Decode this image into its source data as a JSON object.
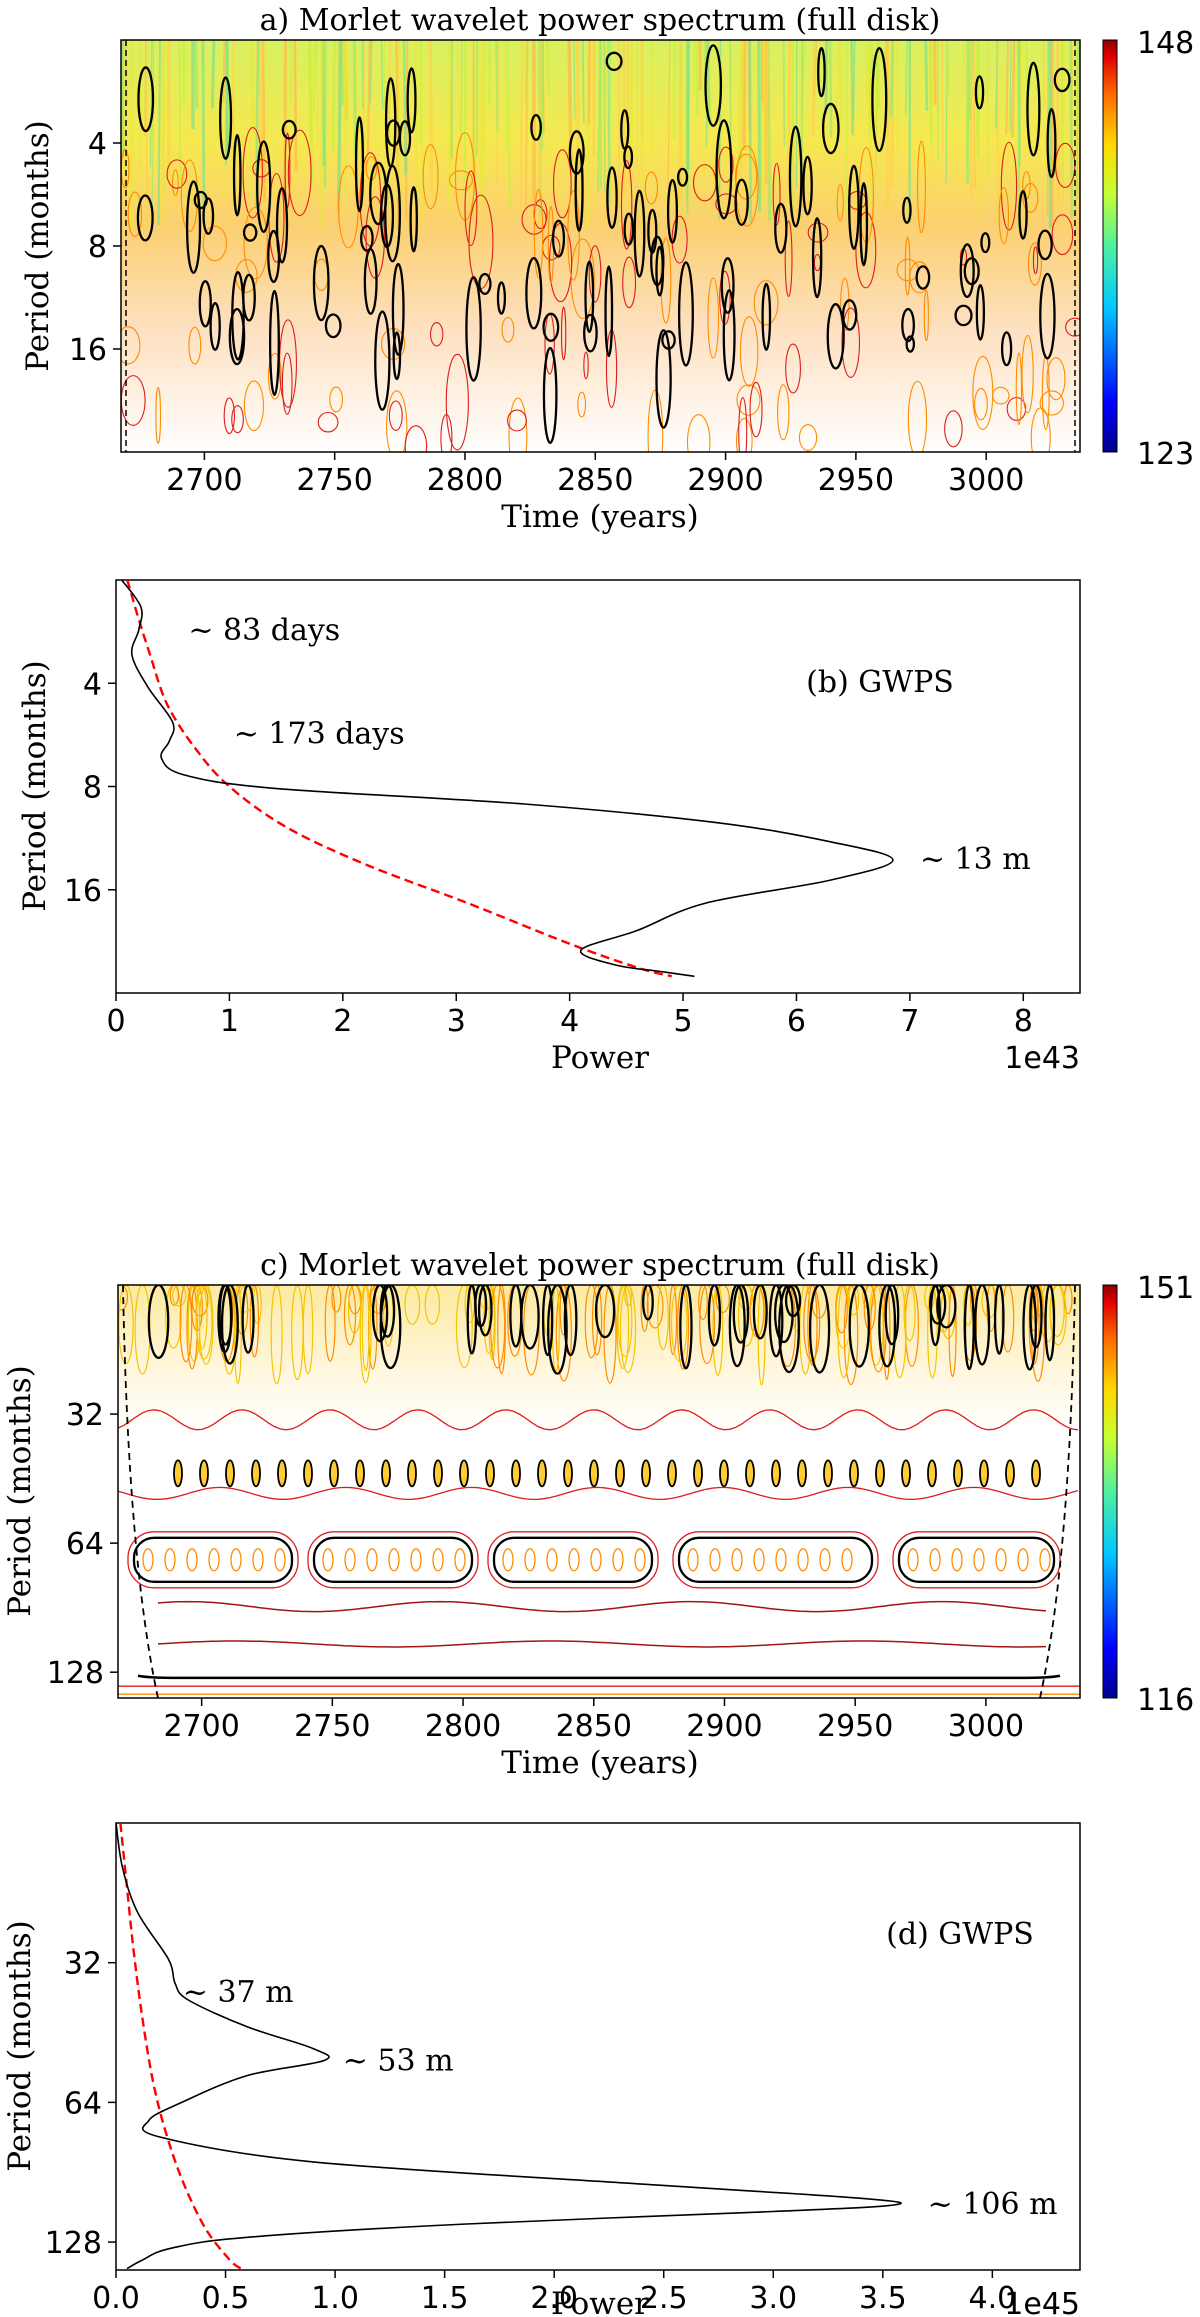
{
  "colors": {
    "contour_scale": [
      "#00008b",
      "#0000ff",
      "#00bfff",
      "#40e0d0",
      "#7fff7f",
      "#ffff00",
      "#ffa500",
      "#ff4500",
      "#ff0000",
      "#8b0000"
    ],
    "significance": "#000000",
    "coi": "#000000",
    "gwps_line": "#000000",
    "significance_line": "#ff0000",
    "contour_orange": "#ff8c00",
    "contour_red": "#dd1c1c",
    "contour_darkred": "#a01414"
  },
  "chart_data": [
    {
      "id": "a",
      "type": "heatmap",
      "title": "a) Morlet wavelet power spectrum (full disk)",
      "xlabel": "Time (years)",
      "ylabel": "Period (months)",
      "xlim": [
        2668,
        3036
      ],
      "ylim_log2": [
        1,
        5
      ],
      "xticks": [
        2700,
        2750,
        2800,
        2850,
        2900,
        2950,
        3000
      ],
      "yticks": [
        4,
        8,
        16
      ],
      "colorbar": {
        "min": 123,
        "max": 148,
        "min_label": "123",
        "max_label": "148"
      }
    },
    {
      "id": "b",
      "type": "line",
      "label": "(b) GWPS",
      "xlabel": "Power",
      "ylabel": "Period (months)",
      "xlim": [
        0,
        8.5
      ],
      "ylim_log2": [
        1,
        5
      ],
      "xticks": [
        0,
        1,
        2,
        3,
        4,
        5,
        6,
        7,
        8
      ],
      "yticks": [
        4,
        8,
        16
      ],
      "offset_label": "1e43",
      "annotations": [
        {
          "text": "~ 83 days",
          "x": 0.55,
          "period": 2.8
        },
        {
          "text": "~ 173 days",
          "x": 0.95,
          "period": 5.6
        },
        {
          "text": "~ 13 m",
          "x": 7.0,
          "period": 13.0
        }
      ],
      "series": [
        {
          "name": "GWPS",
          "points": [
            [
              0.05,
              2.0
            ],
            [
              0.22,
              2.4
            ],
            [
              0.2,
              2.8
            ],
            [
              0.14,
              3.3
            ],
            [
              0.28,
              4.1
            ],
            [
              0.5,
              5.2
            ],
            [
              0.47,
              5.9
            ],
            [
              0.4,
              6.6
            ],
            [
              0.6,
              7.4
            ],
            [
              1.4,
              8.1
            ],
            [
              3.6,
              9.0
            ],
            [
              5.3,
              10.2
            ],
            [
              6.3,
              11.6
            ],
            [
              6.85,
              13.1
            ],
            [
              6.3,
              15.0
            ],
            [
              5.2,
              17.5
            ],
            [
              4.6,
              21.0
            ],
            [
              4.1,
              24.0
            ],
            [
              4.4,
              26.5
            ],
            [
              4.8,
              27.7
            ],
            [
              5.1,
              28.6
            ]
          ]
        },
        {
          "name": "significance",
          "points": [
            [
              0.1,
              2.0
            ],
            [
              0.2,
              2.6
            ],
            [
              0.3,
              3.3
            ],
            [
              0.45,
              4.6
            ],
            [
              0.7,
              6.2
            ],
            [
              1.0,
              8.0
            ],
            [
              1.5,
              10.5
            ],
            [
              2.2,
              13.5
            ],
            [
              3.1,
              17.5
            ],
            [
              4.0,
              23.0
            ],
            [
              4.6,
              27.0
            ],
            [
              4.9,
              28.6
            ]
          ]
        }
      ]
    },
    {
      "id": "c",
      "type": "heatmap",
      "title": "c) Morlet wavelet power spectrum (full disk)",
      "xlabel": "Time (years)",
      "ylabel": "Period (months)",
      "xlim": [
        2668,
        3036
      ],
      "ylim_log2": [
        4,
        7.2
      ],
      "xticks": [
        2700,
        2750,
        2800,
        2850,
        2900,
        2950,
        3000
      ],
      "yticks": [
        32,
        64,
        128
      ],
      "colorbar": {
        "min": 116,
        "max": 151,
        "min_label": "116",
        "max_label": "151"
      }
    },
    {
      "id": "d",
      "type": "line",
      "label": "(d) GWPS",
      "xlabel": "Power",
      "ylabel": "Period (months)",
      "xlim": [
        0,
        4.4
      ],
      "ylim_log2": [
        4,
        7.2
      ],
      "xticks": [
        0.0,
        0.5,
        1.0,
        1.5,
        2.0,
        2.5,
        3.0,
        3.5,
        4.0
      ],
      "xtick_labels": [
        "0.0",
        "0.5",
        "1.0",
        "1.5",
        "2.0",
        "2.5",
        "3.0",
        "3.5",
        "4.0"
      ],
      "yticks": [
        32,
        64,
        128
      ],
      "offset_label": "1e45",
      "annotations": [
        {
          "text": "~ 37 m",
          "x": 0.25,
          "period": 37.0
        },
        {
          "text": "~ 53 m",
          "x": 0.98,
          "period": 52.0
        },
        {
          "text": "~ 106 m",
          "x": 3.65,
          "period": 106.0
        }
      ],
      "series": [
        {
          "name": "GWPS",
          "points": [
            [
              0.0,
              16.0
            ],
            [
              0.03,
              20.0
            ],
            [
              0.1,
              25.0
            ],
            [
              0.24,
              31.5
            ],
            [
              0.27,
              35.5
            ],
            [
              0.33,
              38.5
            ],
            [
              0.6,
              44.0
            ],
            [
              0.9,
              49.0
            ],
            [
              0.95,
              52.0
            ],
            [
              0.6,
              56.0
            ],
            [
              0.3,
              64.0
            ],
            [
              0.15,
              70.0
            ],
            [
              0.2,
              76.0
            ],
            [
              0.9,
              86.0
            ],
            [
              2.4,
              96.0
            ],
            [
              3.4,
              103.0
            ],
            [
              3.55,
              106.5
            ],
            [
              3.0,
              110.0
            ],
            [
              1.6,
              117.0
            ],
            [
              0.6,
              125.0
            ],
            [
              0.25,
              132.0
            ],
            [
              0.12,
              140.0
            ],
            [
              0.05,
              146.0
            ]
          ]
        },
        {
          "name": "significance",
          "points": [
            [
              0.02,
              16.0
            ],
            [
              0.05,
              22.0
            ],
            [
              0.08,
              30.0
            ],
            [
              0.12,
              42.0
            ],
            [
              0.17,
              58.0
            ],
            [
              0.23,
              75.0
            ],
            [
              0.31,
              96.0
            ],
            [
              0.41,
              120.0
            ],
            [
              0.52,
              140.0
            ],
            [
              0.57,
              146.0
            ]
          ]
        }
      ]
    }
  ]
}
